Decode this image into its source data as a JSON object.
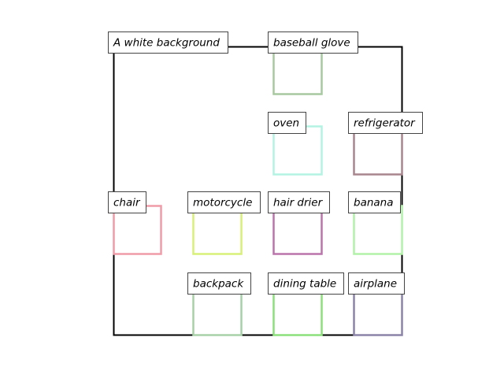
{
  "background_caption": "A white background",
  "objects": [
    {
      "label": "baseball glove",
      "color": "#a8c8a0"
    },
    {
      "label": "oven",
      "color": "#b4f2e2"
    },
    {
      "label": "refrigerator",
      "color": "#a8868e"
    },
    {
      "label": "chair",
      "color": "#f09ca8"
    },
    {
      "label": "motorcycle",
      "color": "#d8f078"
    },
    {
      "label": "hair drier",
      "color": "#ba74aa"
    },
    {
      "label": "banana",
      "color": "#b2f2a8"
    },
    {
      "label": "backpack",
      "color": "#a8d0a8"
    },
    {
      "label": "dining table",
      "color": "#8ce07c"
    },
    {
      "label": "airplane",
      "color": "#8c84a8"
    }
  ]
}
